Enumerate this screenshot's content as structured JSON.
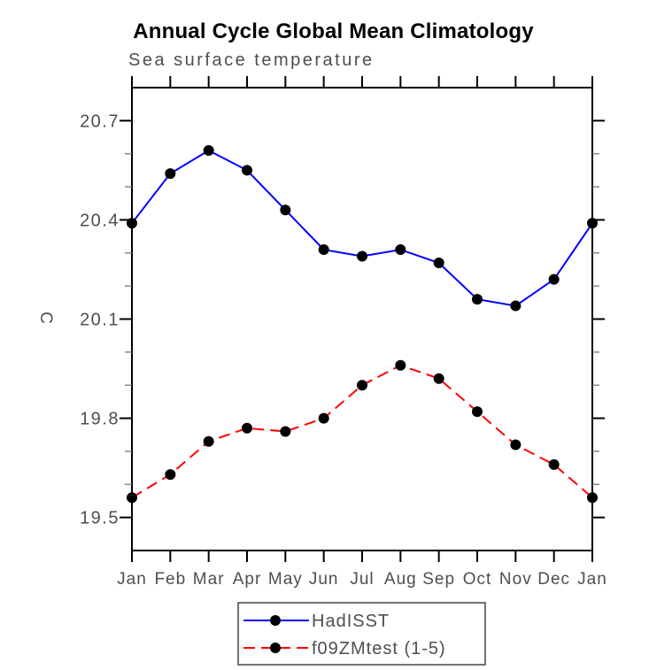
{
  "title": "Annual Cycle Global Mean Climatology",
  "subtitle": "Sea surface temperature",
  "chart_data": {
    "type": "line",
    "title": "Annual Cycle Global Mean Climatology",
    "subtitle": "Sea surface temperature",
    "xlabel": "",
    "ylabel": "C",
    "x_categories": [
      "Jan",
      "Feb",
      "Mar",
      "Apr",
      "May",
      "Jun",
      "Jul",
      "Aug",
      "Sep",
      "Oct",
      "Nov",
      "Dec",
      "Jan"
    ],
    "ylim": [
      19.4,
      20.8
    ],
    "y_major_ticks": [
      19.5,
      19.8,
      20.1,
      20.4,
      20.7
    ],
    "y_minor_step": 0.1,
    "grid": false,
    "legend_position": "bottom-center",
    "series": [
      {
        "name": "HadISST",
        "line_color": "#0000ff",
        "line_style": "solid",
        "marker": "filled-circle",
        "marker_color": "#000000",
        "values": [
          20.39,
          20.54,
          20.61,
          20.55,
          20.43,
          20.31,
          20.29,
          20.31,
          20.27,
          20.16,
          20.14,
          20.22,
          20.39
        ]
      },
      {
        "name": "f09ZMtest (1-5)",
        "line_color": "#ff0000",
        "line_style": "dashed",
        "marker": "filled-circle",
        "marker_color": "#000000",
        "values": [
          19.56,
          19.63,
          19.73,
          19.77,
          19.76,
          19.8,
          19.9,
          19.96,
          19.92,
          19.82,
          19.72,
          19.66,
          19.56
        ]
      }
    ]
  },
  "colors": {
    "background": "#ffffff",
    "axis": "#000000",
    "minor_tick": "#777777",
    "label_gray": "#4e4e4e",
    "legend_border": "#444444",
    "series_blue": "#0000ff",
    "series_red": "#ff0000",
    "marker_black": "#000000"
  }
}
